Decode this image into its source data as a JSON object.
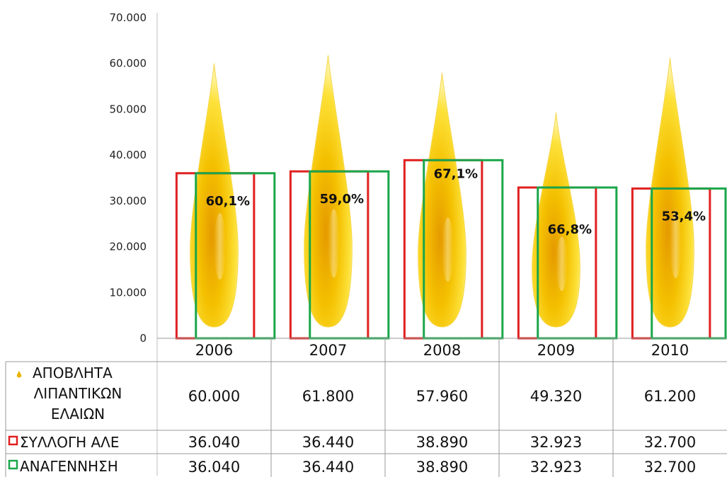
{
  "chart_data": {
    "type": "bar",
    "categories": [
      "2006",
      "2007",
      "2008",
      "2009",
      "2010"
    ],
    "ylim": [
      0,
      70000
    ],
    "yticks": [
      "0",
      "10.000",
      "20.000",
      "30.000",
      "40.000",
      "50.000",
      "60.000",
      "70.000"
    ],
    "series": [
      {
        "name": "ΑΠΟΒΛΗΤΑ ΛΙΠΑΝΤΙΚΩΝ ΕΛΑΙΩΝ",
        "marker": "oil-drop",
        "color": "#f2c200",
        "values": [
          60000,
          61800,
          57960,
          49320,
          61200
        ],
        "labels": [
          "60.000",
          "61.800",
          "57.960",
          "49.320",
          "61.200"
        ]
      },
      {
        "name": "ΣΥΛΛΟΓΗ ΑΛΕ",
        "marker": "red-outline-box",
        "color": "#e02020",
        "values": [
          36040,
          36440,
          38890,
          32923,
          32700
        ],
        "labels": [
          "36.040",
          "36.440",
          "38.890",
          "32.923",
          "32.700"
        ]
      },
      {
        "name": "ΑΝΑΓΕΝΝΗΣΗ",
        "marker": "green-outline-box",
        "color": "#1aa64a",
        "values": [
          36040,
          36440,
          38890,
          32923,
          32700
        ],
        "labels": [
          "36.040",
          "36.440",
          "38.890",
          "32.923",
          "32.700"
        ]
      }
    ],
    "percent_labels": [
      "60,1%",
      "59,0%",
      "67,1%",
      "66,8%",
      "53,4%"
    ],
    "legend_placement": "data-table-below",
    "grid": false
  }
}
